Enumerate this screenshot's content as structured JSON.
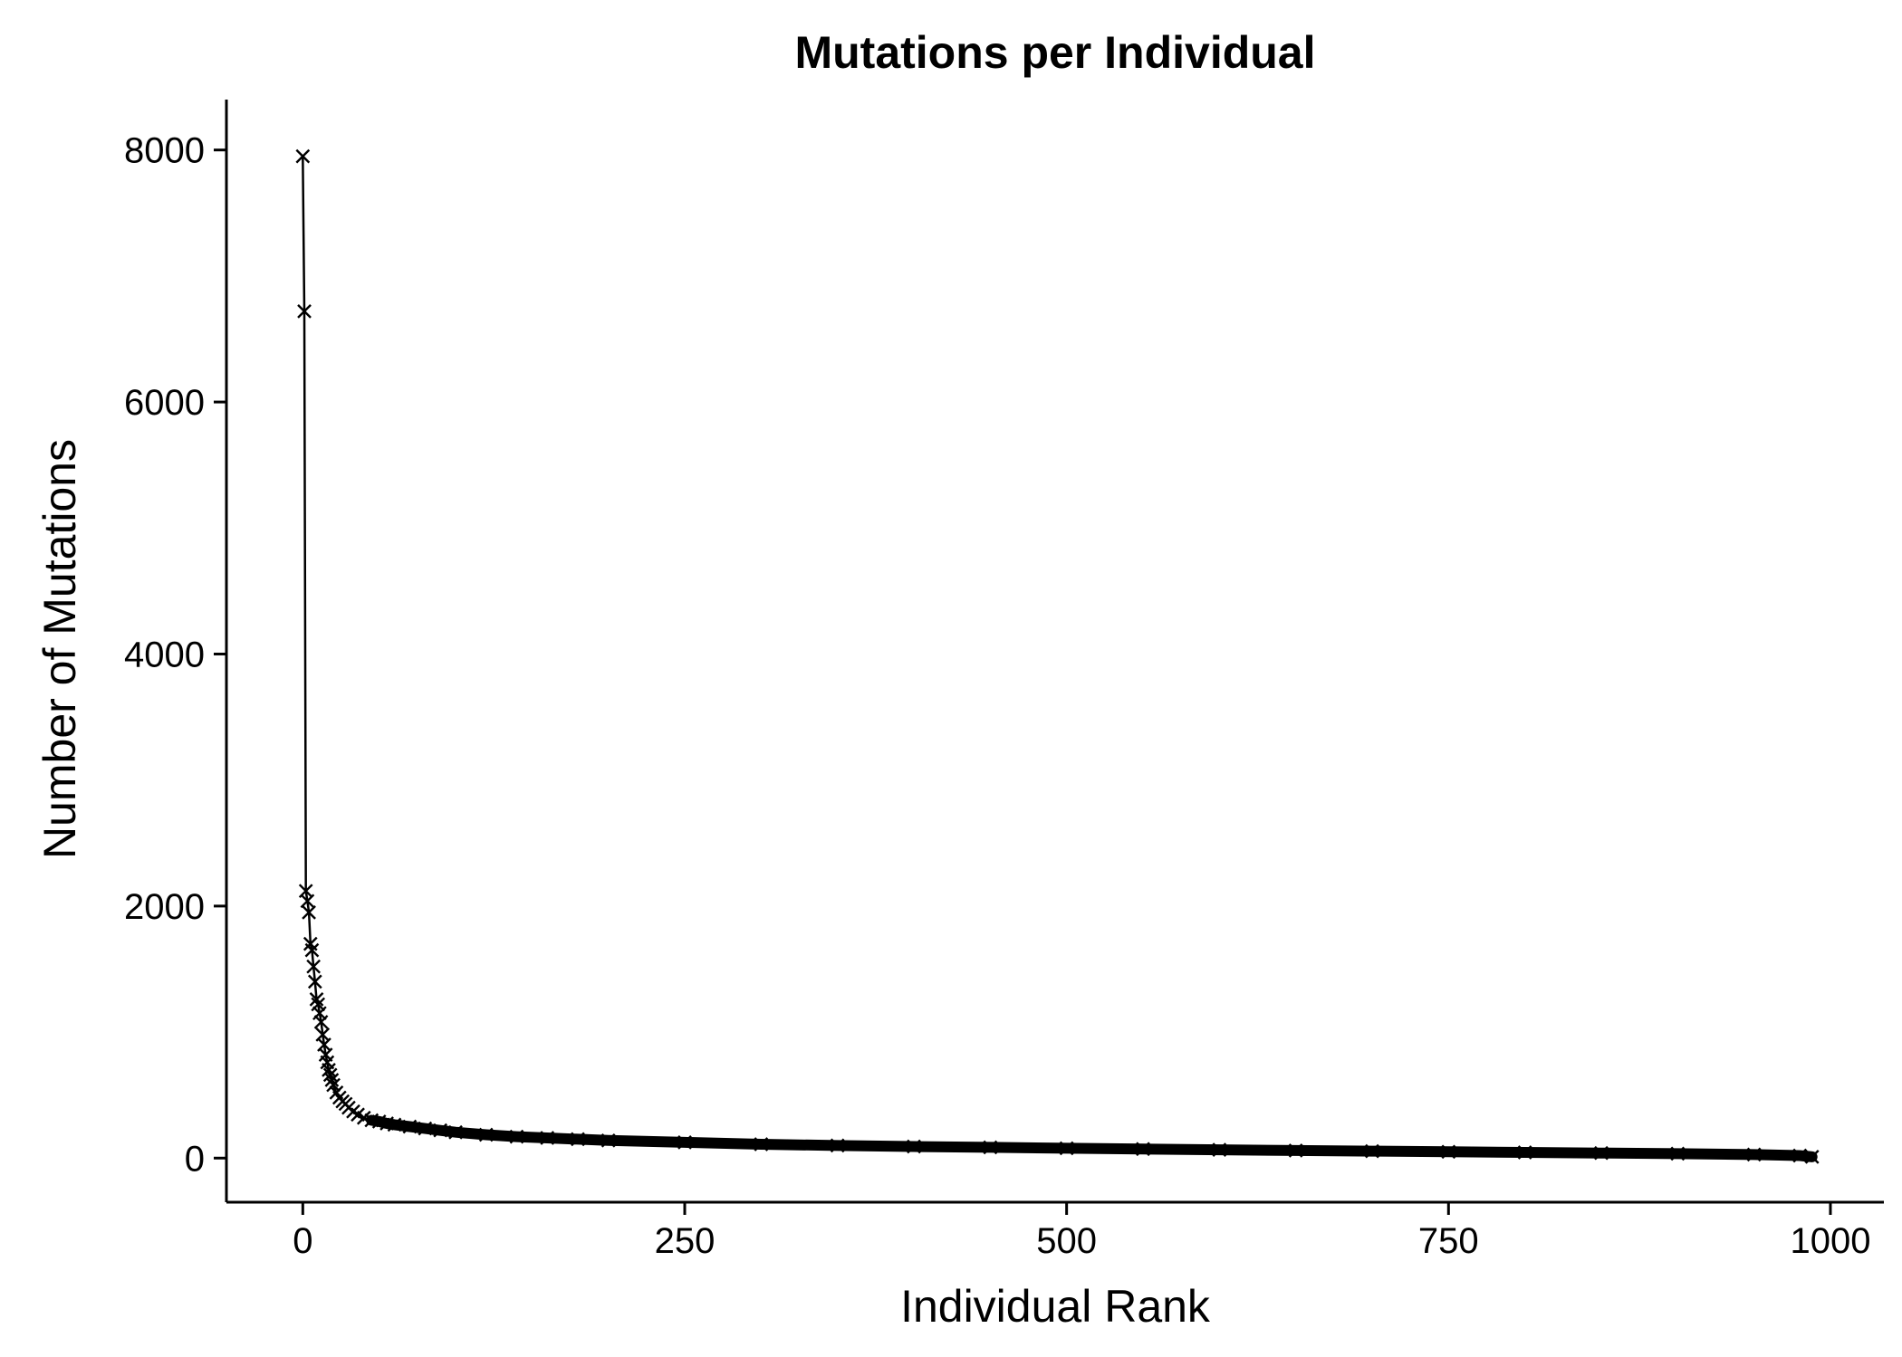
{
  "chart_data": {
    "type": "line",
    "title": "Mutations per Individual",
    "xlabel": "Individual Rank",
    "ylabel": "Number of Mutations",
    "xlim": [
      -50,
      1035
    ],
    "ylim": [
      -350,
      8400
    ],
    "x_ticks": [
      0,
      250,
      500,
      750,
      1000
    ],
    "x_tick_labels": [
      "0",
      "250",
      "500",
      "750",
      "1000"
    ],
    "y_ticks": [
      0,
      2000,
      4000,
      6000,
      8000
    ],
    "y_tick_labels": [
      "0",
      "2000",
      "4000",
      "6000",
      "8000"
    ],
    "grid": false,
    "legend": "none",
    "marker": "x",
    "color": "#000000",
    "series": [
      {
        "x": [
          0,
          1,
          2,
          3,
          4,
          5,
          6,
          7,
          8,
          9,
          10,
          11,
          12,
          13,
          14,
          15,
          16,
          17,
          18,
          19,
          20,
          22,
          24,
          26,
          28,
          30,
          33,
          36,
          40,
          45,
          50,
          55,
          60,
          70,
          80,
          90,
          100,
          120,
          140,
          160,
          180,
          200,
          250,
          300,
          350,
          400,
          450,
          500,
          550,
          600,
          650,
          700,
          750,
          800,
          850,
          900,
          950,
          980,
          988
        ],
        "y": [
          7950,
          6720,
          2120,
          2040,
          1950,
          1700,
          1650,
          1520,
          1400,
          1260,
          1220,
          1150,
          1080,
          980,
          900,
          820,
          760,
          700,
          660,
          620,
          580,
          520,
          480,
          450,
          430,
          400,
          370,
          345,
          320,
          300,
          290,
          275,
          265,
          250,
          235,
          220,
          205,
          185,
          170,
          160,
          150,
          140,
          125,
          110,
          100,
          92,
          85,
          78,
          72,
          66,
          60,
          55,
          50,
          45,
          40,
          35,
          28,
          20,
          10
        ]
      }
    ]
  }
}
